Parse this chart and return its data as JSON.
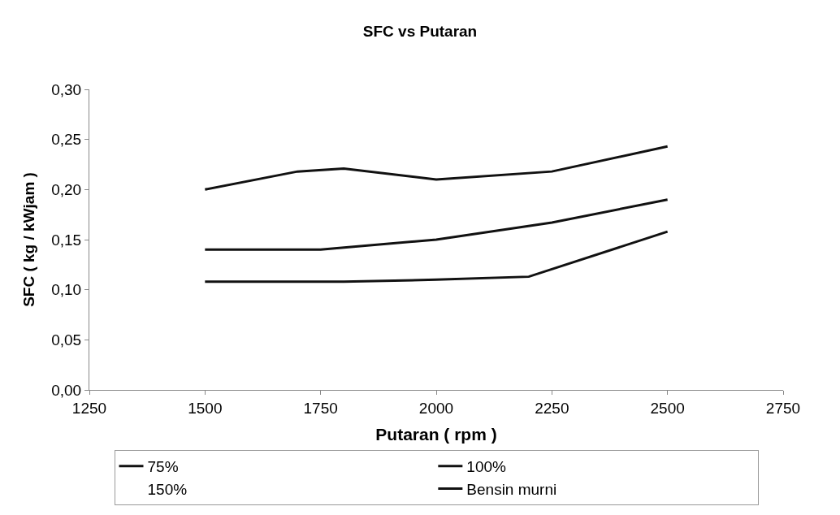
{
  "chart_data": {
    "type": "line",
    "title": "SFC vs Putaran",
    "xlabel": "Putaran ( rpm )",
    "ylabel": "SFC ( kg / kWjam )",
    "xlim": [
      1250,
      2750
    ],
    "xticks": [
      1250,
      1500,
      1750,
      2000,
      2250,
      2500,
      2750
    ],
    "ylim": [
      0,
      0.3
    ],
    "yticks": [
      {
        "value": 0,
        "label": "0,00"
      },
      {
        "value": 0.05,
        "label": "0,05"
      },
      {
        "value": 0.1,
        "label": "0,10"
      },
      {
        "value": 0.15,
        "label": "0,15"
      },
      {
        "value": 0.2,
        "label": "0,20"
      },
      {
        "value": 0.25,
        "label": "0,25"
      },
      {
        "value": 0.3,
        "label": "0,30"
      }
    ],
    "legend": "bottom",
    "marker": "none",
    "line_style": "solid",
    "series": [
      {
        "name": "75%",
        "color": "#111111",
        "x": [
          1500,
          1700,
          1800,
          2000,
          2250,
          2500
        ],
        "values": [
          0.2,
          0.218,
          0.221,
          0.21,
          0.218,
          0.243
        ]
      },
      {
        "name": "100%",
        "color": "#111111",
        "x": [
          1500,
          1800,
          2000,
          2200,
          2500
        ],
        "values": [
          0.108,
          0.108,
          0.11,
          0.113,
          0.158
        ]
      },
      {
        "name": "150%",
        "values": [
          null
        ]
      },
      {
        "name": "Bensin murni",
        "color": "#111111",
        "x": [
          1500,
          1750,
          2000,
          2250,
          2500
        ],
        "values": [
          0.14,
          0.14,
          0.15,
          0.167,
          0.19
        ]
      }
    ]
  }
}
